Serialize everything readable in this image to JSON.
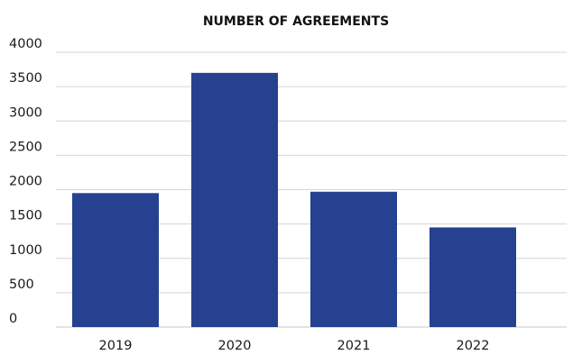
{
  "chart_data": {
    "type": "bar",
    "title": "NUMBER OF AGREEMENTS",
    "xlabel": "",
    "ylabel": "",
    "categories": [
      "2019",
      "2020",
      "2021",
      "2022"
    ],
    "values": [
      1950,
      3700,
      1970,
      1450
    ],
    "ylim": [
      0,
      4000
    ],
    "yticks": [
      0,
      500,
      1000,
      1500,
      2000,
      2500,
      3000,
      3500,
      4000
    ],
    "grid": true,
    "legend": "none",
    "bar_color": "#26418f",
    "grid_color": "#d4d4d4"
  }
}
